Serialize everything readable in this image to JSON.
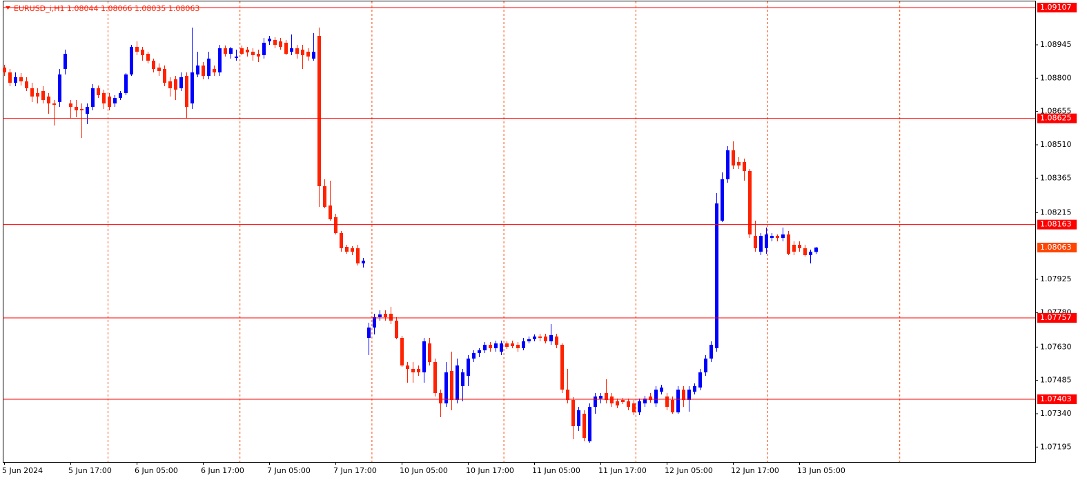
{
  "chart_data": {
    "type": "candlestick",
    "title": "EURUSD_i,H1  1.08044 1.08066 1.08035 1.08063",
    "categories": [
      "5 Jun 2024",
      null,
      null,
      null,
      null,
      null,
      null,
      null,
      null,
      null,
      null,
      null,
      "5 Jun 17:00",
      null,
      null,
      null,
      null,
      null,
      null,
      null,
      null,
      null,
      null,
      null,
      "6 Jun 05:00",
      null,
      null,
      null,
      null,
      null,
      null,
      null,
      null,
      null,
      null,
      null,
      "6 Jun 17:00",
      null,
      null,
      null,
      null,
      null,
      null,
      null,
      null,
      null,
      null,
      null,
      "7 Jun 05:00",
      null,
      null,
      null,
      null,
      null,
      null,
      null,
      null,
      null,
      null,
      null,
      "7 Jun 17:00",
      null,
      null,
      null,
      null,
      null,
      null,
      null,
      null,
      null,
      null,
      null,
      "10 Jun 05:00",
      null,
      null,
      null,
      null,
      null,
      null,
      null,
      null,
      null,
      null,
      null,
      "10 Jun 17:00",
      null,
      null,
      null,
      null,
      null,
      null,
      null,
      null,
      null,
      null,
      null,
      "11 Jun 05:00",
      null,
      null,
      null,
      null,
      null,
      null,
      null,
      null,
      null,
      null,
      null,
      "11 Jun 17:00",
      null,
      null,
      null,
      null,
      null,
      null,
      null,
      null,
      null,
      null,
      null,
      "12 Jun 05:00",
      null,
      null,
      null,
      null,
      null,
      null,
      null,
      null,
      null,
      null,
      null,
      "12 Jun 17:00",
      null,
      null,
      null,
      null,
      null,
      null,
      null,
      null,
      null,
      null,
      null,
      "13 Jun 05:00",
      null,
      null,
      null
    ],
    "open": [
      1.08846,
      1.08825,
      1.0878,
      1.08804,
      1.08786,
      1.08756,
      1.08735,
      1.08744,
      1.0872,
      1.0869,
      1.08696,
      1.0884,
      1.0869,
      1.08675,
      1.08666,
      1.08645,
      1.08675,
      1.08756,
      1.08735,
      1.0872,
      1.0869,
      1.08714,
      1.08735,
      1.08816,
      1.08936,
      1.08924,
      1.08906,
      1.08876,
      1.08846,
      1.0884,
      1.08786,
      1.08795,
      1.08756,
      1.0881,
      1.0869,
      1.08816,
      1.08855,
      1.0881,
      1.0884,
      1.08825,
      1.0893,
      1.08906,
      1.08888,
      1.0893,
      1.08924,
      1.08915,
      1.08906,
      1.089,
      1.0896,
      1.08966,
      1.0896,
      1.08954,
      1.08915,
      1.0893,
      1.08924,
      1.08915,
      1.08885,
      1.08984,
      1.0833,
      1.08246,
      1.08195,
      1.08126,
      1.08066,
      1.0806,
      1.0806,
      1.07994,
      1.0767,
      1.07715,
      1.0776,
      1.07775,
      1.07775,
      1.07745,
      1.0767,
      1.0755,
      1.07535,
      1.07535,
      1.0752,
      1.07646,
      1.07565,
      1.0743,
      1.07385,
      1.07526,
      1.074,
      1.0746,
      1.07505,
      1.0758,
      1.07604,
      1.07616,
      1.0764,
      1.07625,
      1.0761,
      1.07646,
      1.07646,
      1.0764,
      1.07625,
      1.07655,
      1.07664,
      1.07676,
      1.07676,
      1.07655,
      1.07676,
      1.0764,
      1.07445,
      1.074,
      1.07286,
      1.0734,
      1.0722,
      1.0737,
      1.07406,
      1.0743,
      1.07415,
      1.07394,
      1.074,
      1.07394,
      1.07385,
      1.07346,
      1.07385,
      1.07415,
      1.07385,
      1.07436,
      1.07415,
      1.074,
      1.07346,
      1.07445,
      1.074,
      1.07436,
      1.07454,
      1.0752,
      1.0758,
      1.07625,
      1.0818,
      1.0836,
      1.08486,
      1.08435,
      1.08435,
      1.08396,
      1.08114,
      1.08045,
      1.0806,
      1.08105,
      1.08114,
      1.08105,
      1.0812,
      1.08075,
      1.08075,
      1.0806,
      1.0803,
      1.08044
    ],
    "high": [
      1.08858,
      1.0884,
      1.08825,
      1.08822,
      1.08804,
      1.0878,
      1.08756,
      1.08765,
      1.08735,
      1.08705,
      1.0884,
      1.08924,
      1.08705,
      1.08705,
      1.0869,
      1.0869,
      1.08774,
      1.08768,
      1.0875,
      1.08735,
      1.08726,
      1.08744,
      1.08822,
      1.08945,
      1.0896,
      1.08936,
      1.08915,
      1.08885,
      1.08864,
      1.08855,
      1.08804,
      1.0881,
      1.08825,
      1.08825,
      1.0902,
      1.08915,
      1.0887,
      1.08915,
      1.08855,
      1.08945,
      1.08942,
      1.08936,
      1.08924,
      1.08942,
      1.08936,
      1.0893,
      1.08924,
      1.08975,
      1.08984,
      1.08978,
      1.08975,
      1.08966,
      1.0899,
      1.08945,
      1.08945,
      1.0893,
      1.08996,
      1.0902,
      1.0836,
      1.08354,
      1.0821,
      1.08135,
      1.08075,
      1.08069,
      1.08075,
      1.08018,
      1.07736,
      1.07775,
      1.0779,
      1.0779,
      1.07805,
      1.0776,
      1.07679,
      1.07565,
      1.07565,
      1.0755,
      1.0767,
      1.0767,
      1.0758,
      1.07445,
      1.07565,
      1.0761,
      1.0758,
      1.07535,
      1.07595,
      1.07616,
      1.07625,
      1.07652,
      1.07652,
      1.07658,
      1.07658,
      1.07655,
      1.07658,
      1.07652,
      1.0767,
      1.07676,
      1.07685,
      1.07688,
      1.07688,
      1.0773,
      1.07688,
      1.07646,
      1.07535,
      1.07412,
      1.0737,
      1.07355,
      1.07385,
      1.0743,
      1.0743,
      1.0749,
      1.0743,
      1.07406,
      1.07409,
      1.07406,
      1.074,
      1.07406,
      1.07418,
      1.0743,
      1.0746,
      1.07466,
      1.0743,
      1.07415,
      1.0746,
      1.0746,
      1.0746,
      1.07472,
      1.07535,
      1.07595,
      1.07655,
      1.083,
      1.0839,
      1.08504,
      1.08525,
      1.08456,
      1.0845,
      1.08405,
      1.0818,
      1.08126,
      1.0815,
      1.08126,
      1.0812,
      1.0815,
      1.08135,
      1.0809,
      1.0809,
      1.08075,
      1.08054,
      1.08066
    ],
    "low": [
      1.0881,
      1.08765,
      1.08765,
      1.08768,
      1.08744,
      1.08696,
      1.0869,
      1.0869,
      1.08645,
      1.08594,
      1.08675,
      1.08816,
      1.08624,
      1.0863,
      1.0854,
      1.086,
      1.0866,
      1.08714,
      1.08666,
      1.0866,
      1.08675,
      1.08705,
      1.08726,
      1.0881,
      1.089,
      1.08876,
      1.08864,
      1.08825,
      1.0881,
      1.08765,
      1.0872,
      1.08705,
      1.08744,
      1.08624,
      1.08666,
      1.08804,
      1.08795,
      1.08795,
      1.0881,
      1.0881,
      1.08894,
      1.08885,
      1.08876,
      1.089,
      1.08894,
      1.08876,
      1.0887,
      1.08885,
      1.08945,
      1.0893,
      1.08924,
      1.089,
      1.089,
      1.08885,
      1.0884,
      1.08876,
      1.08876,
      1.0824,
      1.08234,
      1.0818,
      1.0812,
      1.08045,
      1.08036,
      1.0803,
      1.07985,
      1.07976,
      1.07595,
      1.07685,
      1.07745,
      1.07745,
      1.0773,
      1.07664,
      1.07544,
      1.07475,
      1.07475,
      1.07505,
      1.07475,
      1.0755,
      1.07415,
      1.07325,
      1.0737,
      1.07355,
      1.07385,
      1.07394,
      1.0746,
      1.07565,
      1.07586,
      1.07604,
      1.0761,
      1.0761,
      1.07595,
      1.07622,
      1.07625,
      1.0761,
      1.07616,
      1.07646,
      1.07655,
      1.07655,
      1.07646,
      1.0764,
      1.07625,
      1.0743,
      1.07385,
      1.07229,
      1.07265,
      1.0722,
      1.07214,
      1.0734,
      1.07385,
      1.07385,
      1.0737,
      1.07364,
      1.07382,
      1.07355,
      1.07334,
      1.07334,
      1.0737,
      1.07388,
      1.0737,
      1.07424,
      1.07355,
      1.0734,
      1.0734,
      1.0737,
      1.07349,
      1.07424,
      1.07442,
      1.07505,
      1.07565,
      1.0761,
      1.08174,
      1.08345,
      1.08405,
      1.08405,
      1.08354,
      1.08105,
      1.08045,
      1.0803,
      1.08036,
      1.0809,
      1.0809,
      1.0809,
      1.0803,
      1.0803,
      1.08045,
      1.08024,
      1.07994,
      1.08035
    ],
    "close": [
      1.08825,
      1.0878,
      1.08804,
      1.08786,
      1.08756,
      1.0872,
      1.0872,
      1.08705,
      1.0869,
      1.08684,
      1.08816,
      1.08906,
      1.08675,
      1.0866,
      1.0866,
      1.08675,
      1.08756,
      1.08726,
      1.0869,
      1.08675,
      1.08714,
      1.08735,
      1.08816,
      1.08936,
      1.08915,
      1.089,
      1.08876,
      1.0884,
      1.08831,
      1.0878,
      1.08756,
      1.0875,
      1.08804,
      1.08675,
      1.08825,
      1.08855,
      1.0881,
      1.08885,
      1.08825,
      1.0893,
      1.08906,
      1.0893,
      1.08894,
      1.08906,
      1.08912,
      1.089,
      1.08894,
      1.08954,
      1.08972,
      1.08945,
      1.08936,
      1.08906,
      1.0893,
      1.08906,
      1.089,
      1.08894,
      1.08915,
      1.0833,
      1.0824,
      1.08186,
      1.08126,
      1.0806,
      1.08045,
      1.08045,
      1.07994,
      1.08006,
      1.07715,
      1.0776,
      1.07772,
      1.0776,
      1.07745,
      1.0767,
      1.0755,
      1.07535,
      1.0752,
      1.0752,
      1.07655,
      1.07565,
      1.0743,
      1.07385,
      1.0752,
      1.074,
      1.0755,
      1.0752,
      1.0758,
      1.07604,
      1.07616,
      1.0764,
      1.07625,
      1.07646,
      1.07646,
      1.07631,
      1.07634,
      1.07625,
      1.07655,
      1.07664,
      1.07676,
      1.0767,
      1.07655,
      1.07682,
      1.0764,
      1.07445,
      1.074,
      1.07286,
      1.07355,
      1.07235,
      1.0737,
      1.07415,
      1.07418,
      1.074,
      1.07385,
      1.07376,
      1.07391,
      1.0737,
      1.07346,
      1.07394,
      1.07406,
      1.074,
      1.07445,
      1.07454,
      1.0737,
      1.07346,
      1.07445,
      1.074,
      1.07445,
      1.0746,
      1.0752,
      1.0758,
      1.0764,
      1.08255,
      1.0836,
      1.08486,
      1.0842,
      1.0842,
      1.08396,
      1.0812,
      1.0806,
      1.08114,
      1.0812,
      1.08114,
      1.08105,
      1.0812,
      1.08036,
      1.08045,
      1.0806,
      1.0803,
      1.08045,
      1.08063
    ],
    "up_color": "#0000ff",
    "down_color": "#ff2200",
    "ylim": [
      1.0713,
      1.0914
    ],
    "yticks": [
      1.08945,
      {
        "value": 1.088,
        "label": "1.08800"
      },
      1.08655,
      {
        "value": 1.0851,
        "label": "1.08510"
      },
      1.08365,
      1.08215,
      1.07925,
      {
        "value": 1.0778,
        "label": "1.07780"
      },
      {
        "value": 1.0763,
        "label": "1.07630"
      },
      1.07485,
      {
        "value": 1.0734,
        "label": "1.07340"
      },
      1.07195
    ],
    "levels": [
      1.09107,
      1.08625,
      1.08163,
      1.07757,
      1.07403
    ],
    "level_color": "#ff0000",
    "price_label_color": "#ff4500"
  }
}
